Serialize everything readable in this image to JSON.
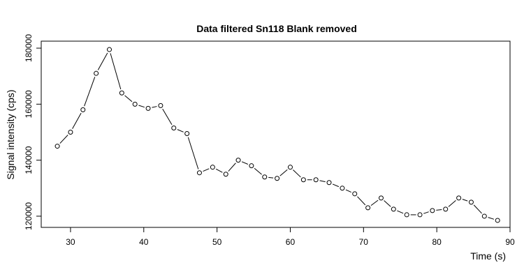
{
  "chart_data": {
    "type": "line",
    "title": "Data filtered Sn118 Blank removed",
    "xlabel": "Time (s)",
    "ylabel": "Signal intensity (cps)",
    "xlim": [
      26,
      90
    ],
    "ylim": [
      116000,
      182500
    ],
    "xticks": [
      30,
      40,
      50,
      60,
      70,
      80,
      90
    ],
    "yticks": [
      120000,
      140000,
      160000,
      180000
    ],
    "xtick_labels": [
      "30",
      "40",
      "50",
      "60",
      "70",
      "80",
      "90"
    ],
    "ytick_labels": [
      "120000",
      "140000",
      "160000",
      "180000"
    ],
    "grid": false,
    "markers": "open-circle",
    "line_color": "#000000",
    "series": [
      {
        "x": [
          28.2,
          30.0,
          31.7,
          33.5,
          35.3,
          37.0,
          38.8,
          40.6,
          42.3,
          44.1,
          45.9,
          47.6,
          49.4,
          51.2,
          52.9,
          54.7,
          56.5,
          58.2,
          60.0,
          61.8,
          63.5,
          65.3,
          67.1,
          68.8,
          70.6,
          72.4,
          74.1,
          75.9,
          77.7,
          79.4,
          81.2,
          83.0,
          84.7,
          86.5,
          88.3
        ],
        "values": [
          145000,
          150000,
          158000,
          171000,
          179500,
          164000,
          160000,
          158500,
          159500,
          151500,
          149500,
          135500,
          137500,
          135000,
          140000,
          138000,
          134000,
          133500,
          137500,
          133000,
          133000,
          132000,
          130000,
          128000,
          123000,
          126500,
          122500,
          120500,
          120500,
          122000,
          122500,
          126500,
          125000,
          120000,
          118500
        ]
      }
    ]
  }
}
